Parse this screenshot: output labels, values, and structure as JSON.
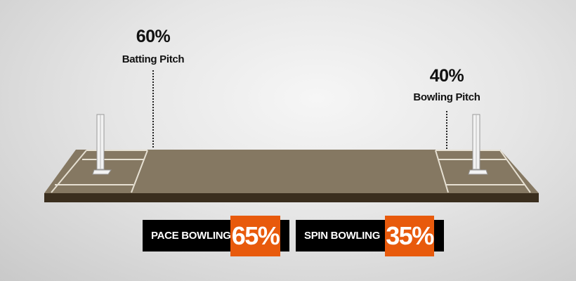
{
  "batting": {
    "percent": "60%",
    "label": "Batting Pitch"
  },
  "bowling": {
    "percent": "40%",
    "label": "Bowling Pitch"
  },
  "pace": {
    "label": "PACE BOWLING",
    "percent": "65%"
  },
  "spin": {
    "label": "SPIN BOWLING",
    "percent": "35%"
  },
  "colors": {
    "accent": "#e85a0c",
    "pitch": "#857862",
    "pitch_edge": "#3a2e1e",
    "bar": "#000000"
  }
}
